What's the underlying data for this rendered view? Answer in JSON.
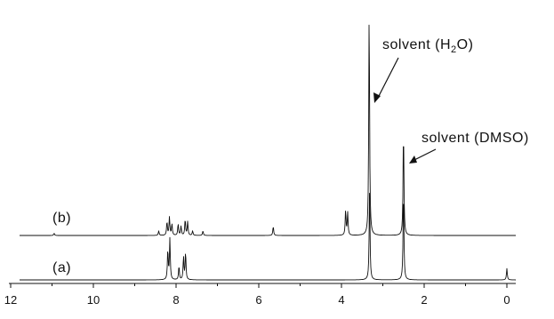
{
  "chart_data": {
    "type": "line",
    "title": "",
    "xlabel": "",
    "ylabel": "",
    "xlim": [
      12.2,
      -0.6
    ],
    "x_reversed": true,
    "x_ticks": [
      12,
      10,
      8,
      6,
      4,
      2,
      0
    ],
    "y_axis_shown": false,
    "grid": false,
    "series": [
      {
        "name": "(b)",
        "peaks": [
          {
            "ppm": 10.95,
            "height": 0.01
          },
          {
            "ppm": 8.42,
            "height": 0.02
          },
          {
            "ppm": 8.22,
            "height": 0.06
          },
          {
            "ppm": 8.16,
            "height": 0.08
          },
          {
            "ppm": 8.1,
            "height": 0.05
          },
          {
            "ppm": 7.95,
            "height": 0.05
          },
          {
            "ppm": 7.88,
            "height": 0.04
          },
          {
            "ppm": 7.78,
            "height": 0.07
          },
          {
            "ppm": 7.72,
            "height": 0.06
          },
          {
            "ppm": 7.6,
            "height": 0.02
          },
          {
            "ppm": 7.35,
            "height": 0.02
          },
          {
            "ppm": 5.65,
            "height": 0.04
          },
          {
            "ppm": 3.9,
            "height": 0.11
          },
          {
            "ppm": 3.85,
            "height": 0.1
          },
          {
            "ppm": 3.33,
            "height": 1.0
          },
          {
            "ppm": 2.5,
            "height": 0.47
          }
        ]
      },
      {
        "name": "(a)",
        "peaks": [
          {
            "ppm": 8.2,
            "height": 0.13
          },
          {
            "ppm": 8.15,
            "height": 0.18
          },
          {
            "ppm": 7.93,
            "height": 0.06
          },
          {
            "ppm": 7.82,
            "height": 0.1
          },
          {
            "ppm": 7.77,
            "height": 0.12
          },
          {
            "ppm": 3.32,
            "height": 0.4
          },
          {
            "ppm": 2.5,
            "height": 0.4
          },
          {
            "ppm": 0.0,
            "height": 0.05
          }
        ]
      }
    ],
    "annotations": [
      {
        "text_main": "solvent (H",
        "text_sub": "2",
        "text_end": "O)",
        "points_to_ppm": 3.33
      },
      {
        "text": "solvent (DMSO)",
        "points_to_ppm": 2.5
      }
    ]
  }
}
